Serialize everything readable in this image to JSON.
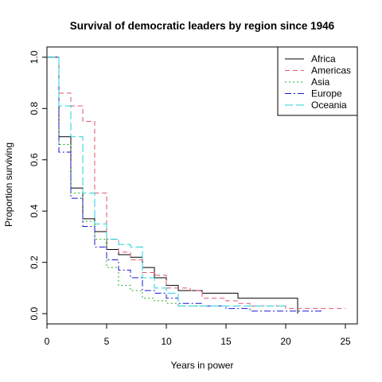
{
  "chart_data": {
    "type": "line",
    "step": true,
    "title": "Survival of democratic leaders by region since 1946",
    "xlabel": "Years in power",
    "ylabel": "Proportion surviving",
    "xlim": [
      0,
      26
    ],
    "ylim": [
      -0.04,
      1.04
    ],
    "x_ticks": [
      "0",
      "5",
      "10",
      "15",
      "20",
      "25"
    ],
    "y_ticks": [
      "0.0",
      "0.2",
      "0.4",
      "0.6",
      "0.8",
      "1.0"
    ],
    "grid": false,
    "legend_position": "top-right",
    "series": [
      {
        "name": "Africa",
        "color": "#000000",
        "dash": "solid",
        "x": [
          0,
          1,
          2,
          3,
          4,
          5,
          6,
          7,
          8,
          9,
          10,
          11,
          13,
          16,
          21
        ],
        "y": [
          1.0,
          0.69,
          0.49,
          0.37,
          0.32,
          0.25,
          0.23,
          0.22,
          0.18,
          0.14,
          0.11,
          0.09,
          0.08,
          0.06,
          0.0
        ]
      },
      {
        "name": "Americas",
        "color": "#DF536B",
        "dash": "6,4",
        "x": [
          0,
          1,
          2,
          3,
          4,
          5,
          6,
          7,
          8,
          9,
          10,
          11,
          12,
          13,
          15,
          16,
          17,
          20,
          25
        ],
        "y": [
          1.0,
          0.86,
          0.81,
          0.75,
          0.47,
          0.29,
          0.24,
          0.21,
          0.16,
          0.15,
          0.1,
          0.1,
          0.09,
          0.06,
          0.05,
          0.04,
          0.03,
          0.02,
          0.02
        ]
      },
      {
        "name": "Asia",
        "color": "#22AA22",
        "dash": "2,3",
        "x": [
          0,
          1,
          2,
          3,
          4,
          5,
          6,
          7,
          8,
          9,
          10,
          11,
          13
        ],
        "y": [
          1.0,
          0.66,
          0.47,
          0.36,
          0.29,
          0.18,
          0.11,
          0.09,
          0.06,
          0.05,
          0.04,
          0.03,
          0.03
        ]
      },
      {
        "name": "Europe",
        "color": "#1818D0",
        "dash": "8,3,2,3",
        "x": [
          0,
          1,
          2,
          3,
          4,
          5,
          6,
          7,
          8,
          9,
          10,
          11,
          13,
          15,
          17,
          23
        ],
        "y": [
          1.0,
          0.63,
          0.45,
          0.34,
          0.26,
          0.21,
          0.17,
          0.14,
          0.09,
          0.08,
          0.06,
          0.04,
          0.03,
          0.02,
          0.01,
          0.01
        ]
      },
      {
        "name": "Oceania",
        "color": "#22D0D8",
        "dash": "10,4",
        "x": [
          0,
          1,
          2,
          3,
          4,
          5,
          6,
          7,
          8,
          9,
          10,
          11,
          13,
          16,
          20
        ],
        "y": [
          1.0,
          0.81,
          0.69,
          0.47,
          0.35,
          0.29,
          0.27,
          0.26,
          0.14,
          0.1,
          0.08,
          0.03,
          0.03,
          0.03,
          0.03
        ]
      }
    ]
  }
}
